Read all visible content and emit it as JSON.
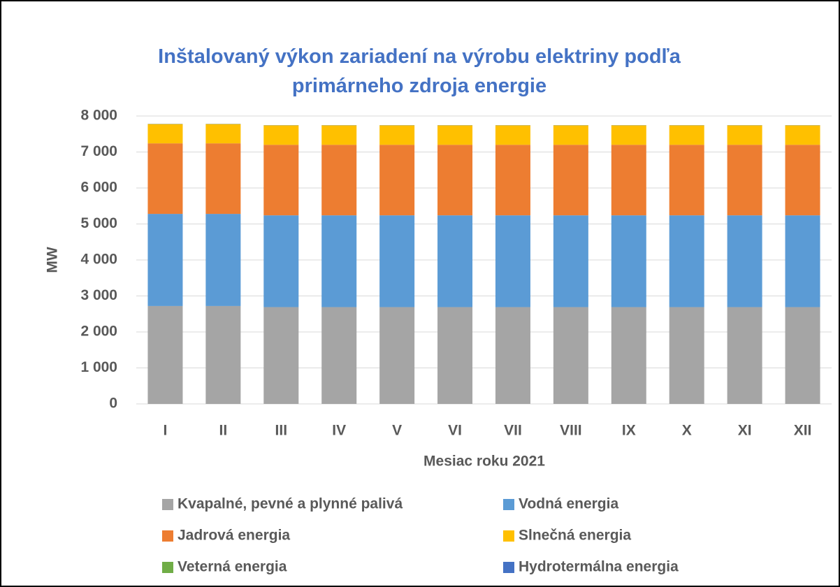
{
  "chart_data": {
    "type": "stacked_bar",
    "title": "Inštalovaný výkon zariadení na výrobu elektriny podľa primárneho zdroja energie",
    "x_label": "Mesiac roku 2021",
    "y_label": "MW",
    "categories": [
      "I",
      "II",
      "III",
      "IV",
      "V",
      "VI",
      "VII",
      "VIII",
      "IX",
      "X",
      "XI",
      "XII"
    ],
    "series": [
      {
        "name": "Kvapalné, pevné a plynné palivá",
        "color": "#a5a5a5",
        "values": [
          2720,
          2720,
          2690,
          2690,
          2690,
          2690,
          2690,
          2690,
          2690,
          2690,
          2690,
          2690
        ]
      },
      {
        "name": "Vodná energia",
        "color": "#5b9bd5",
        "values": [
          2560,
          2560,
          2550,
          2550,
          2550,
          2550,
          2550,
          2550,
          2550,
          2550,
          2550,
          2550
        ]
      },
      {
        "name": "Jadrová energia",
        "color": "#ed7d31",
        "values": [
          1960,
          1960,
          1960,
          1960,
          1960,
          1960,
          1960,
          1960,
          1960,
          1960,
          1960,
          1960
        ]
      },
      {
        "name": "Slnečná energia",
        "color": "#ffc000",
        "values": [
          535,
          535,
          540,
          540,
          540,
          540,
          540,
          540,
          540,
          540,
          540,
          540
        ]
      },
      {
        "name": "Veterná energia",
        "color": "#70ad47",
        "values": [
          3,
          3,
          3,
          3,
          3,
          3,
          3,
          3,
          3,
          3,
          3,
          3
        ]
      },
      {
        "name": "Hydrotermálna energia",
        "color": "#4472c4",
        "values": [
          4,
          4,
          4,
          4,
          4,
          4,
          4,
          4,
          4,
          4,
          4,
          4
        ]
      }
    ],
    "ylim": [
      0,
      8000
    ],
    "yticks": [
      0,
      {
        "value": 1000,
        "label": "1 000"
      },
      {
        "value": 2000,
        "label": "2 000"
      },
      {
        "value": 3000,
        "label": "3 000"
      },
      {
        "value": 4000,
        "label": "4 000"
      },
      {
        "value": 5000,
        "label": "5 000"
      },
      {
        "value": 6000,
        "label": "6 000"
      },
      {
        "value": 7000,
        "label": "7 000"
      },
      {
        "value": 8000,
        "label": "8 000"
      }
    ],
    "grid": true
  }
}
